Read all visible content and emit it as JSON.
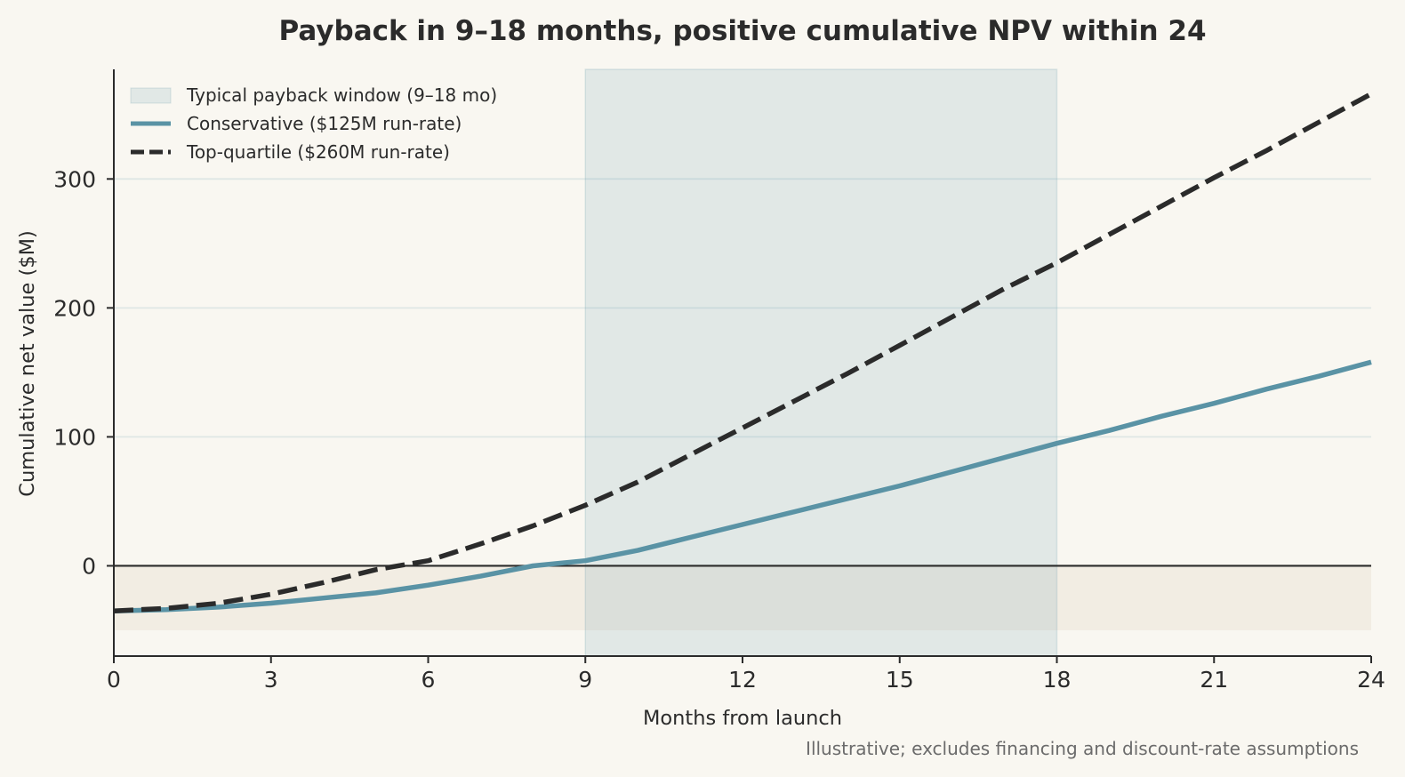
{
  "chart_data": {
    "type": "line",
    "title": "Payback in 9–18 months, positive cumulative NPV within 24",
    "xlabel": "Months from launch",
    "ylabel": "Cumulative net value ($M)",
    "xlim": [
      0,
      24
    ],
    "ylim": [
      -70,
      385
    ],
    "x_ticks": [
      "0",
      "3",
      "6",
      "9",
      "12",
      "15",
      "18",
      "21",
      "24"
    ],
    "x_tick_values": [
      0,
      3,
      6,
      9,
      12,
      15,
      18,
      21,
      24
    ],
    "y_ticks": [
      "0",
      "100",
      "200",
      "300"
    ],
    "y_tick_values": [
      0,
      100,
      200,
      300
    ],
    "grid": "horizontal",
    "legend_position": "top-left",
    "highlight_band": {
      "label": "Typical payback window (9–18 mo)",
      "x_start": 9,
      "x_end": 18,
      "color": "#5a93a5"
    },
    "negative_band": {
      "y_start": -50,
      "y_end": 0,
      "color": "#e8e0d2"
    },
    "zero_line": 0,
    "series": [
      {
        "name": "Conservative ($125M run-rate)",
        "style": "solid",
        "color": "#5a93a5",
        "x": [
          0,
          1,
          2,
          3,
          4,
          5,
          6,
          7,
          8,
          9,
          10,
          11,
          12,
          13,
          14,
          15,
          16,
          17,
          18,
          19,
          20,
          21,
          22,
          23,
          24
        ],
        "values": [
          -35,
          -34,
          -32,
          -29,
          -25,
          -21,
          -15,
          -8,
          0,
          4,
          12,
          22,
          32,
          42,
          52,
          62,
          73,
          84,
          95,
          105,
          116,
          126,
          137,
          147,
          158
        ]
      },
      {
        "name": "Top-quartile ($260M run-rate)",
        "style": "dashed",
        "color": "#2b2b2b",
        "x": [
          0,
          1,
          2,
          3,
          4,
          5,
          6,
          7,
          8,
          9,
          10,
          11,
          12,
          13,
          14,
          15,
          16,
          17,
          18,
          19,
          20,
          21,
          22,
          23,
          24
        ],
        "values": [
          -35,
          -33,
          -29,
          -22,
          -13,
          -3,
          4,
          17,
          31,
          47,
          65,
          86,
          107,
          128,
          149,
          171,
          193,
          215,
          235,
          257,
          279,
          301,
          322,
          344,
          366
        ]
      }
    ],
    "note": "Illustrative; excludes financing and discount-rate assumptions"
  }
}
